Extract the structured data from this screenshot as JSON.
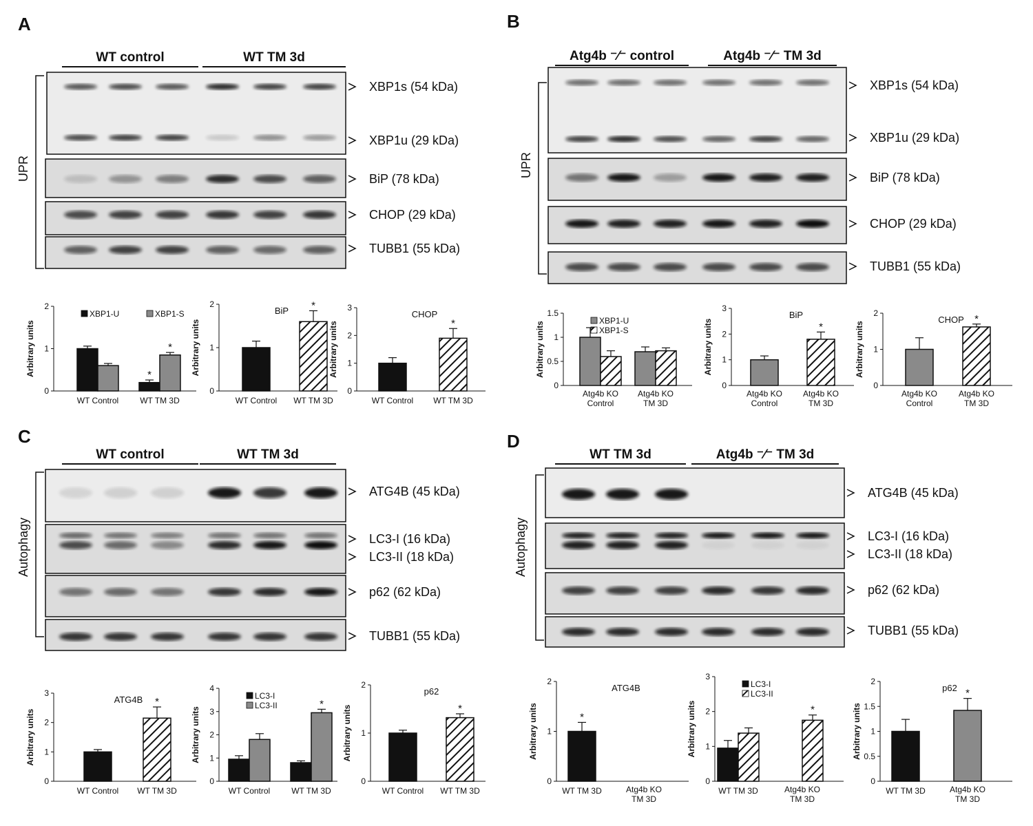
{
  "panels": [
    {
      "label": "A",
      "groups": [
        "WT control",
        "WT TM 3d"
      ],
      "side_label": "UPR",
      "bands": [
        "XBP1s (54 kDa)",
        "XBP1u (29 kDa)",
        "BiP (78 kDa)",
        "CHOP (29 kDa)",
        "TUBB1 (55 kDa)"
      ]
    },
    {
      "label": "B",
      "groups": [
        "Atg4b -/- control",
        "Atg4b -/- TM 3d"
      ],
      "side_label": "UPR",
      "bands": [
        "XBP1s (54 kDa)",
        "XBP1u (29 kDa)",
        "BiP (78 kDa)",
        "CHOP (29 kDa)",
        "TUBB1 (55 kDa)"
      ]
    },
    {
      "label": "C",
      "groups": [
        "WT control",
        "WT TM 3d"
      ],
      "side_label": "Autophagy",
      "bands": [
        "ATG4B (45 kDa)",
        "LC3-I (16 kDa)",
        "LC3-II (18 kDa)",
        "p62 (62 kDa)",
        "TUBB1 (55 kDa)"
      ]
    },
    {
      "label": "D",
      "groups": [
        "WT TM 3d",
        "Atg4b -/- TM 3d"
      ],
      "side_label": "Autophagy",
      "bands": [
        "ATG4B (45 kDa)",
        "LC3-I (16 kDa)",
        "LC3-II (18 kDa)",
        "p62 (62 kDa)",
        "TUBB1 (55 kDa)"
      ]
    }
  ],
  "colors": {
    "black": "#111111",
    "gray": "#8a8a8a",
    "white": "#ffffff"
  },
  "chart_data": [
    {
      "panel": "A",
      "type": "bar",
      "title": "",
      "ylabel": "Arbitrary units",
      "ylim": [
        0,
        2
      ],
      "yticks": [
        0,
        1,
        2
      ],
      "categories": [
        "WT Control",
        "WT TM 3D"
      ],
      "legend": [
        "XBP1-U",
        "XBP1-S"
      ],
      "series": [
        {
          "name": "XBP1-U",
          "style": "black",
          "values": [
            1.0,
            0.2
          ],
          "errors": [
            0.06,
            0.06
          ],
          "sig": [
            false,
            true
          ]
        },
        {
          "name": "XBP1-S",
          "style": "gray",
          "values": [
            0.6,
            0.85
          ],
          "errors": [
            0.05,
            0.06
          ],
          "sig": [
            false,
            true
          ]
        }
      ]
    },
    {
      "panel": "A",
      "type": "bar",
      "title": "BiP",
      "ylabel": "Arbitrary units",
      "ylim": [
        0,
        2
      ],
      "yticks": [
        0,
        1,
        2
      ],
      "categories": [
        "WT Control",
        "WT TM 3D"
      ],
      "legend": [],
      "series": [
        {
          "name": "",
          "style": "per",
          "styles": [
            "black",
            "hatch"
          ],
          "values": [
            1.0,
            1.6
          ],
          "errors": [
            0.15,
            0.25
          ],
          "sig": [
            false,
            true
          ]
        }
      ]
    },
    {
      "panel": "A",
      "type": "bar",
      "title": "CHOP",
      "ylabel": "Arbitrary units",
      "ylim": [
        0,
        3
      ],
      "yticks": [
        0,
        1,
        2,
        3
      ],
      "categories": [
        "WT Control",
        "WT TM 3D"
      ],
      "legend": [],
      "series": [
        {
          "name": "",
          "style": "per",
          "styles": [
            "black",
            "hatch"
          ],
          "values": [
            1.0,
            1.9
          ],
          "errors": [
            0.2,
            0.35
          ],
          "sig": [
            false,
            true
          ]
        }
      ]
    },
    {
      "panel": "B",
      "type": "bar",
      "title": "",
      "ylabel": "Arbitrary units",
      "ylim": [
        0,
        1.5
      ],
      "yticks": [
        0,
        0.5,
        1,
        1.5
      ],
      "categories": [
        "Atg4b KO Control",
        "Atg4b KO TM 3D"
      ],
      "legend": [
        "XBP1-U",
        "XBP1-S"
      ],
      "series": [
        {
          "name": "XBP1-U",
          "style": "gray",
          "values": [
            1.0,
            0.7
          ],
          "errors": [
            0.2,
            0.1
          ],
          "sig": [
            false,
            false
          ]
        },
        {
          "name": "XBP1-S",
          "style": "hatch",
          "values": [
            0.6,
            0.72
          ],
          "errors": [
            0.12,
            0.06
          ],
          "sig": [
            false,
            false
          ]
        }
      ]
    },
    {
      "panel": "B",
      "type": "bar",
      "title": "BiP",
      "ylabel": "Arbitrary units",
      "ylim": [
        0,
        3
      ],
      "yticks": [
        0,
        1,
        2,
        3
      ],
      "categories": [
        "Atg4b KO Control",
        "Atg4b KO TM 3D"
      ],
      "legend": [],
      "series": [
        {
          "name": "",
          "style": "per",
          "styles": [
            "gray",
            "hatch"
          ],
          "values": [
            1.0,
            1.8
          ],
          "errors": [
            0.15,
            0.28
          ],
          "sig": [
            false,
            true
          ]
        }
      ]
    },
    {
      "panel": "B",
      "type": "bar",
      "title": "CHOP",
      "ylabel": "Arbitrary units",
      "ylim": [
        0,
        2
      ],
      "yticks": [
        0,
        1,
        2
      ],
      "categories": [
        "Atg4b KO Control",
        "Atg4b KO TM 3D"
      ],
      "legend": [],
      "series": [
        {
          "name": "",
          "style": "per",
          "styles": [
            "gray",
            "hatch"
          ],
          "values": [
            1.0,
            1.62
          ],
          "errors": [
            0.32,
            0.08
          ],
          "sig": [
            false,
            true
          ]
        }
      ]
    },
    {
      "panel": "C",
      "type": "bar",
      "title": "ATG4B",
      "ylabel": "Arbitrary units",
      "ylim": [
        0,
        3
      ],
      "yticks": [
        0,
        1,
        2,
        3
      ],
      "categories": [
        "WT Control",
        "WT TM 3D"
      ],
      "legend": [],
      "series": [
        {
          "name": "",
          "style": "per",
          "styles": [
            "black",
            "hatch"
          ],
          "values": [
            1.0,
            2.15
          ],
          "errors": [
            0.08,
            0.38
          ],
          "sig": [
            false,
            true
          ]
        }
      ]
    },
    {
      "panel": "C",
      "type": "bar",
      "title": "",
      "ylabel": "Arbitrary units",
      "ylim": [
        0,
        4
      ],
      "yticks": [
        0,
        1,
        2,
        3,
        4
      ],
      "categories": [
        "WT Control",
        "WT TM 3D"
      ],
      "legend": [
        "LC3-I",
        "LC3-II"
      ],
      "series": [
        {
          "name": "LC3-I",
          "style": "black",
          "values": [
            0.95,
            0.8
          ],
          "errors": [
            0.15,
            0.08
          ],
          "sig": [
            false,
            false
          ]
        },
        {
          "name": "LC3-II",
          "style": "gray",
          "values": [
            1.8,
            2.95
          ],
          "errors": [
            0.25,
            0.15
          ],
          "sig": [
            false,
            true
          ]
        }
      ]
    },
    {
      "panel": "C",
      "type": "bar",
      "title": "p62",
      "ylabel": "Arbitrary units",
      "ylim": [
        0,
        2
      ],
      "yticks": [
        0,
        1,
        2
      ],
      "categories": [
        "WT Control",
        "WT TM 3D"
      ],
      "legend": [],
      "series": [
        {
          "name": "",
          "style": "per",
          "styles": [
            "black",
            "hatch"
          ],
          "values": [
            1.0,
            1.32
          ],
          "errors": [
            0.06,
            0.08
          ],
          "sig": [
            false,
            true
          ]
        }
      ]
    },
    {
      "panel": "D",
      "type": "bar",
      "title": "ATG4B",
      "ylabel": "Arbitrary units",
      "ylim": [
        0,
        2
      ],
      "yticks": [
        0,
        1,
        2
      ],
      "categories": [
        "WT TM 3D",
        "Atg4b KO TM 3D"
      ],
      "legend": [],
      "series": [
        {
          "name": "",
          "style": "per",
          "styles": [
            "black",
            "hatch"
          ],
          "values": [
            1.0,
            0
          ],
          "errors": [
            0.18,
            0
          ],
          "sig": [
            true,
            false
          ]
        }
      ]
    },
    {
      "panel": "D",
      "type": "bar",
      "title": "",
      "ylabel": "Arbitrary units",
      "ylim": [
        0,
        3
      ],
      "yticks": [
        0,
        1,
        2,
        3
      ],
      "categories": [
        "WT TM 3D",
        "Atg4b KO TM 3D"
      ],
      "legend": [
        "LC3-I",
        "LC3-II"
      ],
      "series": [
        {
          "name": "LC3-I",
          "style": "black",
          "values": [
            0.95,
            null
          ],
          "errors": [
            0.22,
            0
          ],
          "sig": [
            false,
            false
          ]
        },
        {
          "name": "LC3-II",
          "style": "hatch",
          "values": [
            1.38,
            1.75
          ],
          "errors": [
            0.15,
            0.15
          ],
          "sig": [
            false,
            true
          ]
        }
      ]
    },
    {
      "panel": "D",
      "type": "bar",
      "title": "p62",
      "ylabel": "Arbitrary units",
      "ylim": [
        0,
        2
      ],
      "yticks": [
        0,
        0.5,
        1,
        1.5,
        2
      ],
      "categories": [
        "WT TM 3D",
        "Atg4b KO TM 3D"
      ],
      "legend": [],
      "series": [
        {
          "name": "",
          "style": "per",
          "styles": [
            "black",
            "gray"
          ],
          "values": [
            1.0,
            1.42
          ],
          "errors": [
            0.24,
            0.24
          ],
          "sig": [
            false,
            true
          ]
        }
      ]
    }
  ]
}
